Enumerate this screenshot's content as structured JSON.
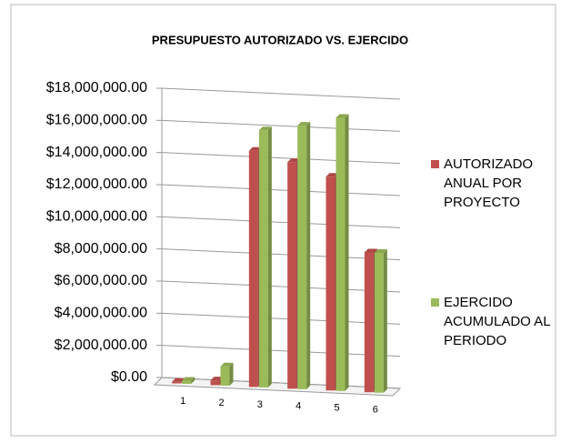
{
  "chart_data": {
    "type": "bar3d",
    "title": "PRESUPUESTO AUTORIZADO VS. EJERCIDO",
    "categories": [
      "1",
      "2",
      "3",
      "4",
      "5",
      "6"
    ],
    "series": [
      {
        "name": "AUTORIZADO ANUAL POR PROYECTO",
        "color": "#c0504d",
        "values": [
          100000,
          300000,
          14700000,
          14100000,
          13300000,
          8700000
        ]
      },
      {
        "name": "EJERCIDO ACUMULADO AL PERIODO",
        "color": "#9bbb59",
        "values": [
          200000,
          1200000,
          16000000,
          16400000,
          17000000,
          8700000
        ]
      }
    ],
    "ylim": [
      0,
      18000000
    ],
    "yticks": [
      {
        "value": 0,
        "label": "$0.00"
      },
      {
        "value": 2000000,
        "label": "$2,000,000.00"
      },
      {
        "value": 4000000,
        "label": "$4,000,000.00"
      },
      {
        "value": 6000000,
        "label": "$6,000,000.00"
      },
      {
        "value": 8000000,
        "label": "$8,000,000.00"
      },
      {
        "value": 10000000,
        "label": "$10,000,000.00"
      },
      {
        "value": 12000000,
        "label": "$12,000,000.00"
      },
      {
        "value": 14000000,
        "label": "$14,000,000.00"
      },
      {
        "value": 16000000,
        "label": "$16,000,000.00"
      },
      {
        "value": 18000000,
        "label": "$18,000,000.00"
      }
    ],
    "grid": true,
    "legend": "right"
  }
}
